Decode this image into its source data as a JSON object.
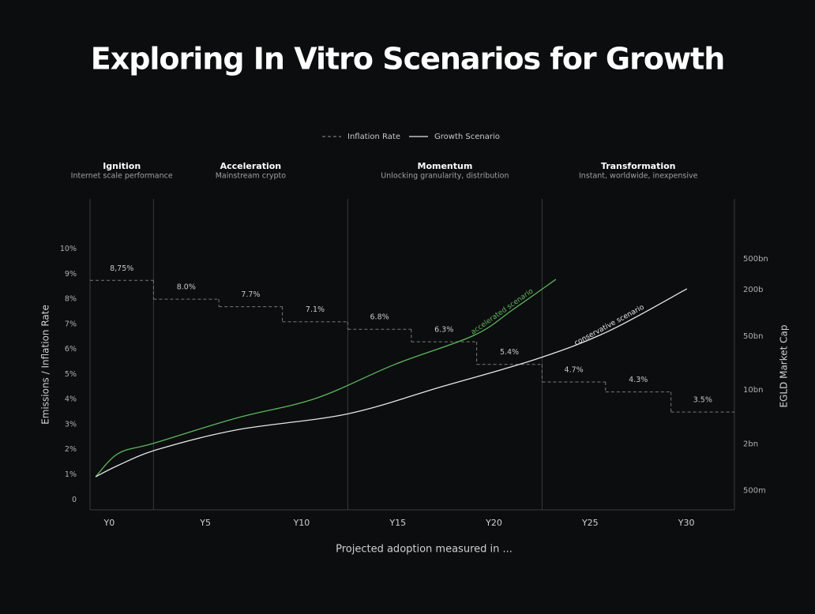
{
  "chart_data": {
    "type": "line",
    "title": "Exploring In Vitro Scenarios for Growth",
    "x_label": "Projected adoption measured in ...",
    "y_label": "Emissions / Inflation Rate",
    "y2_label": "EGLD Market Cap",
    "xlim": [
      -1,
      32.5
    ],
    "xticks": [
      {
        "value": 0,
        "label": "Y0"
      },
      {
        "value": 5,
        "label": "Y5"
      },
      {
        "value": 10,
        "label": "Y10"
      },
      {
        "value": 15,
        "label": "Y15"
      },
      {
        "value": 20,
        "label": "Y20"
      },
      {
        "value": 25,
        "label": "Y25"
      },
      {
        "value": 30,
        "label": "Y30"
      }
    ],
    "ylim": [
      -0.4,
      12
    ],
    "yticks": [
      0,
      {
        "value": 1,
        "label": "1%"
      },
      {
        "value": 2,
        "label": "2%"
      },
      {
        "value": 3,
        "label": "3%"
      },
      {
        "value": 4,
        "label": "4%"
      },
      {
        "value": 5,
        "label": "5%"
      },
      {
        "value": 6,
        "label": "6%"
      },
      {
        "value": 7,
        "label": "7%"
      },
      {
        "value": 8,
        "label": "8%"
      },
      {
        "value": 9,
        "label": "9%"
      },
      {
        "value": 10,
        "label": "10%"
      }
    ],
    "y2lim": [
      0.28,
      3000
    ],
    "y2_log": true,
    "y2ticks": [
      {
        "value": 0.5,
        "label": "500m"
      },
      {
        "value": 2,
        "label": "2bn"
      },
      {
        "value": 10,
        "label": "10bn"
      },
      {
        "value": 50,
        "label": "50bn"
      },
      {
        "value": 200,
        "label": "200b"
      },
      {
        "value": 500,
        "label": "500bn"
      }
    ],
    "phase_bounds": [
      2.3,
      12.4,
      22.5
    ],
    "phases": [
      {
        "title": "Ignition",
        "subtitle": "Internet scale performance"
      },
      {
        "title": "Acceleration",
        "subtitle": "Mainstream crypto"
      },
      {
        "title": "Momentum",
        "subtitle": "Unlocking granularity, distribution"
      },
      {
        "title": "Transformation",
        "subtitle": "Instant, worldwide, inexpensive"
      }
    ],
    "series": [
      {
        "name": "Inflation Rate",
        "color": "#7a7a7a",
        "dashed": true,
        "step": true,
        "x": [
          -1,
          2.3,
          5.7,
          9,
          12.4,
          15.7,
          19.1,
          22.5,
          25.8,
          29.2
        ],
        "values": [
          8.75,
          8.0,
          7.7,
          7.1,
          6.8,
          6.3,
          5.4,
          4.7,
          4.3,
          3.5
        ],
        "value_labels": [
          "8,75%",
          "8.0%",
          "7.7%",
          "7.1%",
          "6.8%",
          "6.3%",
          "5.4%",
          "4.7%",
          "4.3%",
          "3.5%"
        ]
      },
      {
        "name": "Growth Scenario",
        "color": "#e6e6e6",
        "axis": "y2",
        "lines": [
          {
            "label": "accelerated scenario",
            "color": "#5cb85c",
            "x": [
              -0.71,
              0.48,
              2.33,
              6.64,
              10.74,
              14.85,
              18.95,
              21.0,
              23.22
            ],
            "values": [
              0.75,
              1.51,
              2.05,
              4.35,
              7.8,
              21.5,
              51,
              111,
              272
            ]
          },
          {
            "label": "conservative scenario",
            "color": "#e6e6e6",
            "x": [
              -0.71,
              0.48,
              2.53,
              6.64,
              12.38,
              17.31,
              22.23,
              25.93,
              30.03
            ],
            "values": [
              0.75,
              1.06,
              1.7,
              3.05,
              4.9,
              11.1,
              25.3,
              57.5,
              205
            ]
          }
        ]
      }
    ]
  }
}
